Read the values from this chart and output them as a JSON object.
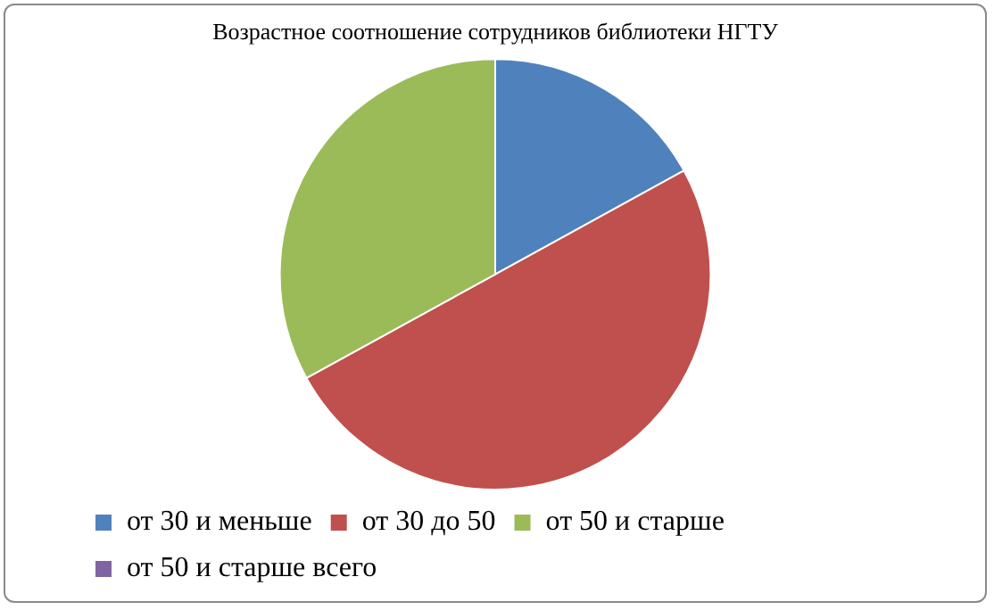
{
  "chart_data": {
    "type": "pie",
    "title": "Возрастное соотношение сотрудников библиотеки НГТУ",
    "categories": [
      "от 30 и меньше",
      "от 30 до 50",
      "от 50 и старше",
      "от 50 и старше всего"
    ],
    "values": [
      17,
      50,
      33,
      0
    ],
    "colors": [
      "#4f81bd",
      "#c0504d",
      "#9bbb59",
      "#8064a2"
    ],
    "legend": "bottom"
  }
}
